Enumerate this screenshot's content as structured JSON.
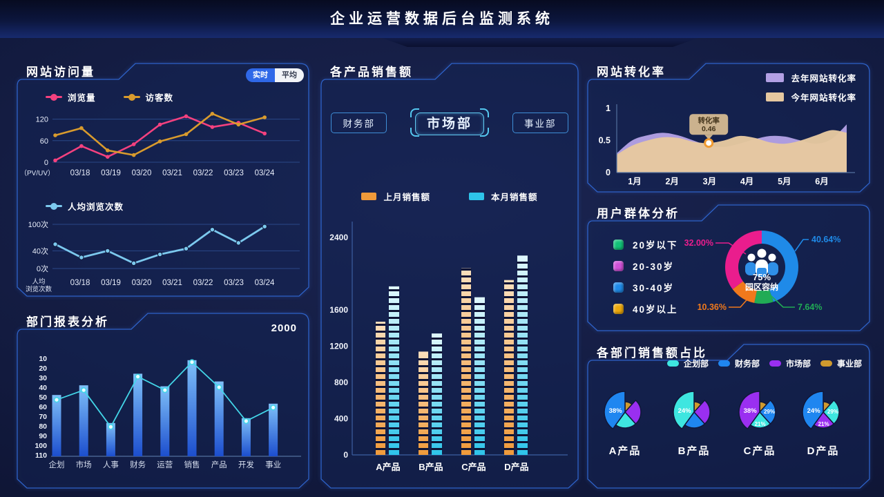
{
  "header": {
    "title": "企业运营数据后台监测系统"
  },
  "panels": {
    "visits": {
      "title": "网站访问量",
      "toggle": [
        {
          "label": "实时",
          "active": true
        },
        {
          "label": "平均",
          "active": false
        }
      ]
    },
    "dept_report": {
      "title": "部门报表分析"
    },
    "product_sales": {
      "title": "各产品销售额",
      "tabs": [
        {
          "label": "财务部",
          "active": false
        },
        {
          "label": "市场部",
          "active": true
        },
        {
          "label": "事业部",
          "active": false
        }
      ]
    },
    "conversion": {
      "title": "网站转化率"
    },
    "user_groups": {
      "title": "用户群体分析"
    },
    "dept_share": {
      "title": "各部门销售额占比"
    }
  },
  "chart_data": [
    {
      "id": "visits_trend",
      "type": "line",
      "x_labels": [
        "03/18",
        "03/19",
        "03/20",
        "03/21",
        "03/22",
        "03/23",
        "03/24"
      ],
      "x_axis_prefix": "（PV/UV）",
      "y_ticks": [
        0,
        60,
        120
      ],
      "ylim": [
        0,
        130
      ],
      "grid": true,
      "series": [
        {
          "name": "浏览量",
          "color": "#f4417f",
          "values": [
            5,
            45,
            15,
            50,
            105,
            128,
            98,
            110,
            80
          ]
        },
        {
          "name": "访客数",
          "color": "#d99b2d",
          "values": [
            75,
            95,
            33,
            20,
            58,
            78,
            135,
            105,
            125
          ]
        }
      ]
    },
    {
      "id": "per_capita_views",
      "type": "line",
      "x_labels": [
        "03/18",
        "03/19",
        "03/20",
        "03/21",
        "03/22",
        "03/23",
        "03/24"
      ],
      "x_axis_prefix_lines": [
        "人均",
        "浏览次数"
      ],
      "y_ticks": [
        "0次",
        "40次",
        "100次"
      ],
      "y_tick_values": [
        0,
        40,
        100
      ],
      "ylim": [
        0,
        110
      ],
      "series": [
        {
          "name": "人均浏览次数",
          "color": "#7cc9ee",
          "values": [
            55,
            25,
            40,
            12,
            32,
            45,
            88,
            58,
            95
          ]
        }
      ]
    },
    {
      "id": "dept_report",
      "type": "bar",
      "corner_value": "2000",
      "categories": [
        "企划",
        "市场",
        "人事",
        "财务",
        "运营",
        "销售",
        "产品",
        "开发",
        "事业"
      ],
      "y_ticks": [
        10,
        20,
        30,
        40,
        50,
        60,
        70,
        80,
        90,
        100,
        110
      ],
      "y_axis_inverted": true,
      "bar_tops": [
        48,
        38,
        77,
        26,
        39,
        12,
        34,
        72,
        57
      ],
      "line_values": [
        53,
        43,
        81,
        29,
        43,
        14,
        40,
        75,
        61
      ],
      "bar_color_top": "#7fc0f8",
      "bar_color_bottom": "#1c4ece",
      "line_color": "#43d6e8"
    },
    {
      "id": "product_sales",
      "type": "bar",
      "categories": [
        "A产品",
        "B产品",
        "C产品",
        "D产品"
      ],
      "y_ticks": [
        0,
        400,
        800,
        1200,
        1600,
        2400
      ],
      "ylim": [
        0,
        2400
      ],
      "series": [
        {
          "name": "上月销售额",
          "color": "#f09a3a",
          "color_top": "#fbdfbc",
          "values": [
            1470,
            1140,
            2060,
            1930
          ]
        },
        {
          "name": "本月销售额",
          "color": "#2ec4ea",
          "color_top": "#e0f8fd",
          "values": [
            1860,
            1340,
            1740,
            2200
          ]
        }
      ]
    },
    {
      "id": "conversion",
      "type": "area",
      "x_labels": [
        "1月",
        "2月",
        "3月",
        "4月",
        "5月",
        "6月"
      ],
      "y_ticks": [
        0,
        0.5,
        1
      ],
      "ylim": [
        0,
        1
      ],
      "series": [
        {
          "name": "去年网站转化率",
          "color": "#b3a0e4",
          "values": [
            0.3,
            0.5,
            0.58,
            0.62,
            0.58,
            0.5,
            0.42,
            0.4,
            0.45,
            0.52,
            0.57,
            0.56,
            0.5,
            0.45,
            0.52,
            0.75
          ]
        },
        {
          "name": "今年网站转化率",
          "color": "#e6c8a0",
          "values": [
            0.28,
            0.42,
            0.5,
            0.55,
            0.54,
            0.48,
            0.46,
            0.5,
            0.57,
            0.54,
            0.47,
            0.45,
            0.5,
            0.58,
            0.66,
            0.62
          ]
        }
      ],
      "tooltip": {
        "label": "转化率",
        "value": "0.46",
        "point_index": 6
      }
    },
    {
      "id": "user_groups",
      "type": "donut",
      "legend": [
        {
          "label": "20岁以下",
          "color": "#12c178"
        },
        {
          "label": "20-30岁",
          "color": "#d051d8"
        },
        {
          "label": "30-40岁",
          "color": "#1f8ae8"
        },
        {
          "label": "40岁以上",
          "color": "#eda90c"
        }
      ],
      "segments": [
        {
          "label": "30-40岁",
          "pct": 40.64,
          "display": "40.64%",
          "color": "#1f8ae8"
        },
        {
          "label": "20岁以下",
          "pct": 7.64,
          "display": "7.64%",
          "color": "#21ab55"
        },
        {
          "label": "40岁以上",
          "pct": 10.36,
          "display": "10.36%",
          "color": "#f0791c"
        },
        {
          "label": "20-30岁",
          "pct": 32.0,
          "display": "32.00%",
          "color": "#ea1d8d"
        }
      ],
      "center": {
        "value": "75%",
        "label": "园区容纳"
      }
    },
    {
      "id": "dept_share",
      "type": "pie",
      "legend": [
        {
          "label": "企划部",
          "color": "#3ee6e0"
        },
        {
          "label": "财务部",
          "color": "#1f86f0"
        },
        {
          "label": "市场部",
          "color": "#9a2ff0"
        },
        {
          "label": "事业部",
          "color": "#cf9a2e"
        }
      ],
      "pies": [
        {
          "label": "A产品",
          "slices": [
            {
              "dept": "事业部",
              "pct": null
            },
            {
              "dept": "市场部",
              "pct": null
            },
            {
              "dept": "企划部",
              "pct": null
            },
            {
              "dept": "财务部",
              "pct": "38%"
            }
          ]
        },
        {
          "label": "B产品",
          "slices": [
            {
              "dept": "事业部",
              "pct": null
            },
            {
              "dept": "市场部",
              "pct": null
            },
            {
              "dept": "财务部",
              "pct": null
            },
            {
              "dept": "企划部",
              "pct": "24%"
            }
          ]
        },
        {
          "label": "C产品",
          "slices": [
            {
              "dept": "事业部",
              "pct": null
            },
            {
              "dept": "财务部",
              "pct": "29%"
            },
            {
              "dept": "企划部",
              "pct": "21%"
            },
            {
              "dept": "市场部",
              "pct": "38%"
            }
          ]
        },
        {
          "label": "D产品",
          "slices": [
            {
              "dept": "事业部",
              "pct": null
            },
            {
              "dept": "企划部",
              "pct": "29%"
            },
            {
              "dept": "市场部",
              "pct": "21%"
            },
            {
              "dept": "财务部",
              "pct": "24%"
            }
          ]
        }
      ]
    }
  ]
}
